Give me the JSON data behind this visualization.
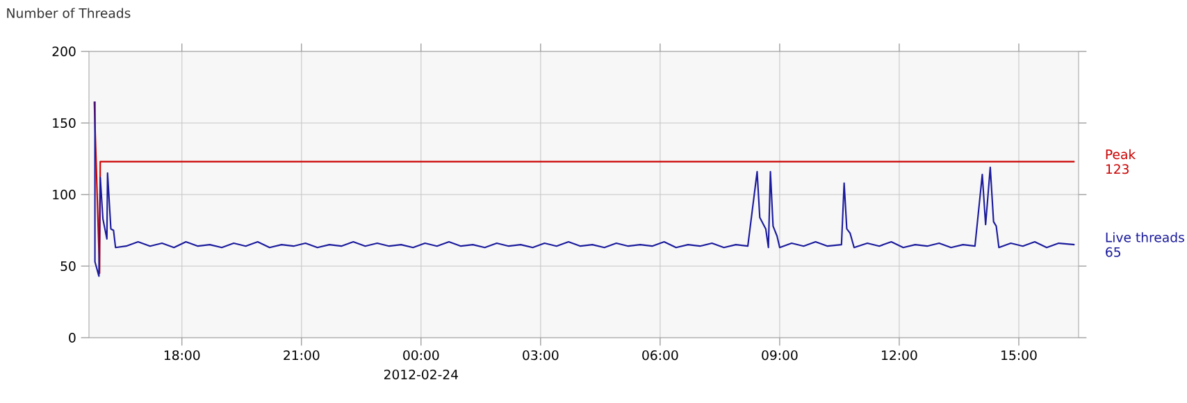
{
  "chart_data": {
    "type": "line",
    "title": "Number of Threads",
    "xlim": [
      "2012-02-23T15:40",
      "2012-02-24T16:30"
    ],
    "ylim": [
      0,
      200
    ],
    "xticks": [
      {
        "value": "2012-02-23T18:00",
        "label": "18:00"
      },
      {
        "value": "2012-02-23T21:00",
        "label": "21:00"
      },
      {
        "value": "2012-02-24T00:00",
        "label": "00:00"
      },
      {
        "value": "2012-02-24T03:00",
        "label": "03:00"
      },
      {
        "value": "2012-02-24T06:00",
        "label": "06:00"
      },
      {
        "value": "2012-02-24T09:00",
        "label": "09:00"
      },
      {
        "value": "2012-02-24T12:00",
        "label": "12:00"
      },
      {
        "value": "2012-02-24T15:00",
        "label": "15:00"
      }
    ],
    "yticks": [
      0,
      50,
      100,
      150,
      200
    ],
    "grid": true,
    "series": [
      {
        "name": "Peak",
        "color": "#cc0000",
        "x": [
          "2012-02-23T15:48",
          "2012-02-23T15:56",
          "2012-02-23T15:57",
          "2012-02-24T16:24"
        ],
        "values": [
          165,
          45,
          123,
          123
        ]
      },
      {
        "name": "Live threads",
        "color": "#1a1a9c",
        "x": [
          "2012-02-23T15:49",
          "2012-02-23T15:49",
          "2012-02-23T15:55",
          "2012-02-23T15:57",
          "2012-02-23T16:01",
          "2012-02-23T16:07",
          "2012-02-23T16:08",
          "2012-02-23T16:13",
          "2012-02-23T16:17",
          "2012-02-23T16:20",
          "2012-02-23T16:36",
          "2012-02-23T16:54",
          "2012-02-23T17:12",
          "2012-02-23T17:30",
          "2012-02-23T17:48",
          "2012-02-23T18:06",
          "2012-02-23T18:24",
          "2012-02-23T18:42",
          "2012-02-23T19:00",
          "2012-02-23T19:18",
          "2012-02-23T19:36",
          "2012-02-23T19:54",
          "2012-02-23T20:12",
          "2012-02-23T20:30",
          "2012-02-23T20:48",
          "2012-02-23T21:06",
          "2012-02-23T21:24",
          "2012-02-23T21:42",
          "2012-02-23T22:00",
          "2012-02-23T22:18",
          "2012-02-23T22:36",
          "2012-02-23T22:54",
          "2012-02-23T23:12",
          "2012-02-23T23:30",
          "2012-02-23T23:48",
          "2012-02-24T00:06",
          "2012-02-24T00:24",
          "2012-02-24T00:42",
          "2012-02-24T01:00",
          "2012-02-24T01:18",
          "2012-02-24T01:36",
          "2012-02-24T01:54",
          "2012-02-24T02:12",
          "2012-02-24T02:30",
          "2012-02-24T02:48",
          "2012-02-24T03:06",
          "2012-02-24T03:24",
          "2012-02-24T03:42",
          "2012-02-24T04:00",
          "2012-02-24T04:18",
          "2012-02-24T04:36",
          "2012-02-24T04:54",
          "2012-02-24T05:12",
          "2012-02-24T05:30",
          "2012-02-24T05:48",
          "2012-02-24T06:06",
          "2012-02-24T06:24",
          "2012-02-24T06:42",
          "2012-02-24T07:00",
          "2012-02-24T07:18",
          "2012-02-24T07:36",
          "2012-02-24T07:54",
          "2012-02-24T08:12",
          "2012-02-24T08:26",
          "2012-02-24T08:30",
          "2012-02-24T08:39",
          "2012-02-24T08:43",
          "2012-02-24T08:46",
          "2012-02-24T08:50",
          "2012-02-24T08:56",
          "2012-02-24T09:00",
          "2012-02-24T09:18",
          "2012-02-24T09:36",
          "2012-02-24T09:54",
          "2012-02-24T10:12",
          "2012-02-24T10:33",
          "2012-02-24T10:37",
          "2012-02-24T10:41",
          "2012-02-24T10:46",
          "2012-02-24T10:52",
          "2012-02-24T11:12",
          "2012-02-24T11:30",
          "2012-02-24T11:48",
          "2012-02-24T12:06",
          "2012-02-24T12:24",
          "2012-02-24T12:42",
          "2012-02-24T13:00",
          "2012-02-24T13:18",
          "2012-02-24T13:36",
          "2012-02-24T13:54",
          "2012-02-24T14:05",
          "2012-02-24T14:10",
          "2012-02-24T14:17",
          "2012-02-24T14:22",
          "2012-02-24T14:26",
          "2012-02-24T14:30",
          "2012-02-24T14:48",
          "2012-02-24T15:06",
          "2012-02-24T15:24",
          "2012-02-24T15:42",
          "2012-02-24T16:00",
          "2012-02-24T16:24"
        ],
        "values": [
          165,
          53,
          43,
          112,
          83,
          69,
          115,
          76,
          75,
          63,
          64,
          67,
          64,
          66,
          63,
          67,
          64,
          65,
          63,
          66,
          64,
          67,
          63,
          65,
          64,
          66,
          63,
          65,
          64,
          67,
          64,
          66,
          64,
          65,
          63,
          66,
          64,
          67,
          64,
          65,
          63,
          66,
          64,
          65,
          63,
          66,
          64,
          67,
          64,
          65,
          63,
          66,
          64,
          65,
          64,
          67,
          63,
          65,
          64,
          66,
          63,
          65,
          64,
          116,
          84,
          76,
          63,
          116,
          78,
          71,
          63,
          66,
          64,
          67,
          64,
          65,
          108,
          76,
          73,
          63,
          66,
          64,
          67,
          63,
          65,
          64,
          66,
          63,
          65,
          64,
          114,
          79,
          119,
          81,
          78,
          63,
          66,
          64,
          67,
          63,
          66,
          65
        ]
      }
    ],
    "annotations": [
      {
        "text": "123",
        "x": "2012-02-24T16:24",
        "y": 123
      },
      {
        "text": "65",
        "x": "2012-02-24T16:24",
        "y": 65
      },
      "2012-02-24"
    ]
  }
}
